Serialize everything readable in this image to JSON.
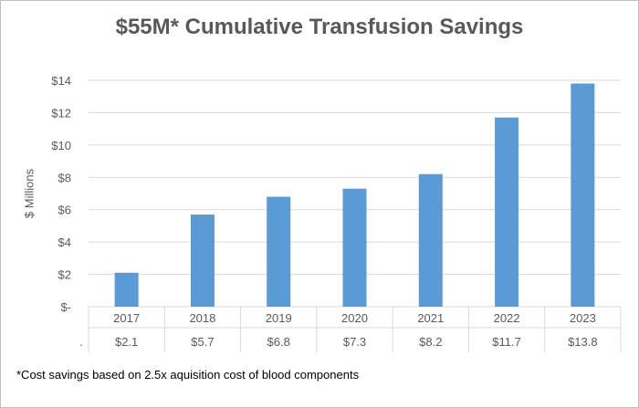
{
  "chart_data": {
    "type": "bar",
    "title": "$55M* Cumulative Transfusion Savings",
    "ylabel": "$ Millions",
    "xlabel": "",
    "categories": [
      "2017",
      "2018",
      "2019",
      "2020",
      "2021",
      "2022",
      "2023"
    ],
    "values": [
      2.1,
      5.7,
      6.8,
      7.3,
      8.2,
      11.7,
      13.8
    ],
    "data_table_labels": [
      "$2.1",
      "$5.7",
      "$6.8",
      "$7.3",
      "$8.2",
      "$11.7",
      "$13.8"
    ],
    "data_table_marker": ".",
    "ylim": [
      0,
      14
    ],
    "yticks": [
      0,
      2,
      4,
      6,
      8,
      10,
      12,
      14
    ],
    "ytick_labels": [
      "$-",
      "$2",
      "$4",
      "$6",
      "$8",
      "$10",
      "$12",
      "$14"
    ],
    "grid": true,
    "footnote": "*Cost savings based on 2.5x aquisition cost of blood components"
  },
  "colors": {
    "bar": "#5b9bd5",
    "grid": "#d9d9d9",
    "axis_text": "#595959",
    "title": "#595959"
  }
}
